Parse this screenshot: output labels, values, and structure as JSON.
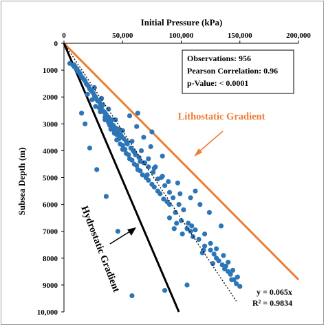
{
  "chart_data": {
    "type": "scatter",
    "title": "Initial Pressure (kPa)",
    "xlabel": "Initial Pressure (kPa)",
    "ylabel": "Subsea Depth (m)",
    "xlim": [
      0,
      200000
    ],
    "ylim": [
      0,
      10000
    ],
    "x_axis_position": "top",
    "y_axis_inverted": true,
    "x_ticks": [
      "0",
      "50,000",
      "100,000",
      "150,000",
      "200,000"
    ],
    "y_ticks": [
      "0",
      "1000",
      "2000",
      "3000",
      "4000",
      "5000",
      "6000",
      "7000",
      "8000",
      "9000",
      "10,000"
    ],
    "grid": false,
    "stats": {
      "observations": "Observations: 956",
      "pearson": "Pearson Correlation: 0.96",
      "p_value": "p-Value: < 0.0001"
    },
    "regression": {
      "equation": "y = 0.065x",
      "r2": "R² = 0.9834",
      "slope_depth_per_kpa": 0.065,
      "endpoints": [
        [
          0,
          0
        ],
        [
          147000,
          9600
        ]
      ]
    },
    "lithostatic": {
      "label": "Lithostatic Gradient",
      "endpoints": [
        [
          0,
          0
        ],
        [
          200000,
          8800
        ]
      ],
      "color": "#ED7D31"
    },
    "hydrostatic": {
      "label": "Hydrostatic Gradient",
      "endpoints": [
        [
          0,
          0
        ],
        [
          98000,
          10000
        ]
      ],
      "color": "#000000"
    },
    "series": [
      {
        "color": "#2E75B6",
        "x": [
          5000,
          7800,
          9000,
          10500,
          12000,
          13500,
          16000,
          18000,
          20000,
          22000,
          24000,
          26000,
          28000,
          30000,
          30000,
          32000,
          33000,
          35000,
          35000,
          37000,
          38000,
          40000,
          40000,
          42000,
          43000,
          45000,
          45000,
          47000,
          48000,
          50000,
          50000,
          52000,
          53000,
          55000,
          56000,
          58000,
          60000,
          62000,
          63000,
          65000,
          67000,
          70000,
          72000,
          75000,
          77000,
          80000,
          82000,
          85000,
          88000,
          90000,
          90000,
          95000,
          96000,
          100000,
          105000,
          108000,
          110000,
          115000,
          120000,
          125000,
          128000,
          130000,
          132000,
          135000,
          137000,
          140000,
          142000,
          145000,
          147000,
          150000,
          148000,
          144000,
          140000,
          136000,
          130000,
          125000,
          120000,
          118000,
          112000,
          106000,
          102000,
          98000,
          93000,
          90000,
          86000,
          80000,
          76000,
          72000,
          68000,
          64000,
          60000,
          57000,
          54000,
          51000,
          48000,
          46000,
          44000,
          42000,
          40000,
          38000,
          36000,
          34000,
          33000,
          31000,
          29000,
          27000,
          25000,
          23000,
          21000,
          19000,
          17000,
          15000,
          14000,
          12500,
          11000,
          9500,
          8500,
          26000,
          32000,
          38000,
          44000,
          50000,
          58000,
          66000,
          72000,
          78000,
          84000,
          68000,
          74000,
          62000,
          56000,
          63000,
          75000,
          84000,
          99000,
          108000,
          116000,
          124000,
          134000,
          97000,
          112000,
          109000,
          94000,
          101000,
          119000,
          127000,
          138000,
          143000,
          105000,
          86000,
          58000,
          46000,
          36000,
          28000,
          22000,
          18000,
          15000,
          41000,
          47000,
          53000,
          61000,
          69000,
          77000,
          83000,
          89000,
          71000,
          65000,
          59000,
          54000,
          49000,
          43000,
          39000,
          35000,
          31000,
          27000,
          24000,
          20000
        ],
        "y": [
          750,
          820,
          880,
          960,
          1050,
          1120,
          1300,
          1400,
          1550,
          1700,
          1800,
          1950,
          2100,
          2150,
          2400,
          2350,
          2500,
          2600,
          2750,
          2800,
          2950,
          3000,
          3200,
          3200,
          3350,
          3400,
          3600,
          3550,
          3750,
          3800,
          3950,
          3950,
          4100,
          4150,
          4300,
          4350,
          4500,
          4550,
          4700,
          4750,
          4900,
          5000,
          5100,
          5250,
          5350,
          5500,
          5600,
          5800,
          5900,
          6000,
          6500,
          6300,
          6700,
          6600,
          6900,
          7000,
          7200,
          7300,
          7550,
          7700,
          7850,
          8000,
          8100,
          8250,
          8400,
          8500,
          8600,
          8800,
          8950,
          9050,
          8700,
          8450,
          8150,
          7900,
          7650,
          7450,
          7100,
          7800,
          6950,
          6700,
          6200,
          6000,
          5750,
          5550,
          5300,
          5050,
          4800,
          4600,
          4450,
          4250,
          4050,
          3900,
          3750,
          3550,
          3400,
          3300,
          3150,
          3050,
          2900,
          2750,
          2650,
          2550,
          2300,
          2250,
          2150,
          2000,
          1850,
          1750,
          1600,
          1500,
          1350,
          1250,
          1150,
          1050,
          950,
          870,
          800,
          1650,
          2050,
          2450,
          2850,
          3250,
          3650,
          4000,
          4300,
          4600,
          4950,
          3500,
          3850,
          3100,
          2700,
          2600,
          3300,
          4200,
          5600,
          5750,
          6000,
          6300,
          6800,
          5200,
          5500,
          6800,
          6900,
          7100,
          7700,
          8200,
          8300,
          8800,
          9000,
          9200,
          9400,
          7000,
          5700,
          4700,
          3900,
          3000,
          2600,
          2850,
          3200,
          3650,
          4150,
          4450,
          4650,
          5000,
          5150,
          4900,
          4400,
          4000,
          3700,
          3450,
          3300,
          3050,
          2850,
          2550,
          2350,
          2100,
          1900
        ]
      }
    ]
  }
}
